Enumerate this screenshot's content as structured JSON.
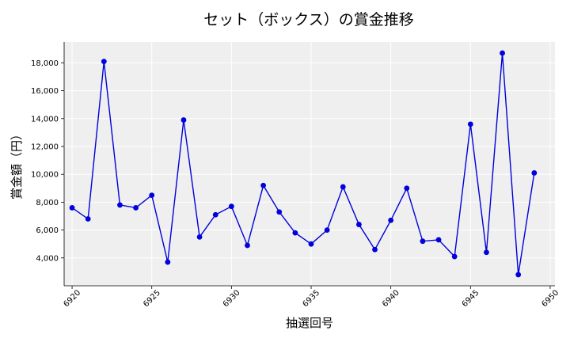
{
  "chart_data": {
    "type": "line",
    "title": "セット（ボックス）の賞金推移",
    "xlabel": "抽選回号",
    "ylabel": "賞金額（円）",
    "x": [
      6920,
      6921,
      6922,
      6923,
      6924,
      6925,
      6926,
      6927,
      6928,
      6929,
      6930,
      6931,
      6932,
      6933,
      6934,
      6935,
      6936,
      6937,
      6938,
      6939,
      6940,
      6941,
      6942,
      6943,
      6944,
      6945,
      6946,
      6947,
      6948,
      6949
    ],
    "series": [
      {
        "values": [
          7600,
          6800,
          18100,
          7800,
          7600,
          8500,
          3700,
          13900,
          5500,
          7100,
          7700,
          4900,
          9200,
          7300,
          5800,
          5000,
          6000,
          9100,
          6400,
          4600,
          6700,
          9000,
          5200,
          5300,
          4100,
          13600,
          4400,
          18700,
          2800,
          10100
        ],
        "color": "#0000dd"
      }
    ],
    "xlim": [
      6919.5,
      6950.3
    ],
    "ylim": [
      2000,
      19500
    ],
    "xticks": [
      6920,
      6925,
      6930,
      6935,
      6940,
      6945,
      6950
    ],
    "yticks": [
      4000,
      6000,
      8000,
      10000,
      12000,
      14000,
      16000,
      18000
    ],
    "ytick_labels": [
      "4,000",
      "6,000",
      "8,000",
      "10,000",
      "12,000",
      "14,000",
      "16,000",
      "18,000"
    ],
    "grid": true,
    "background": "#efefef"
  }
}
